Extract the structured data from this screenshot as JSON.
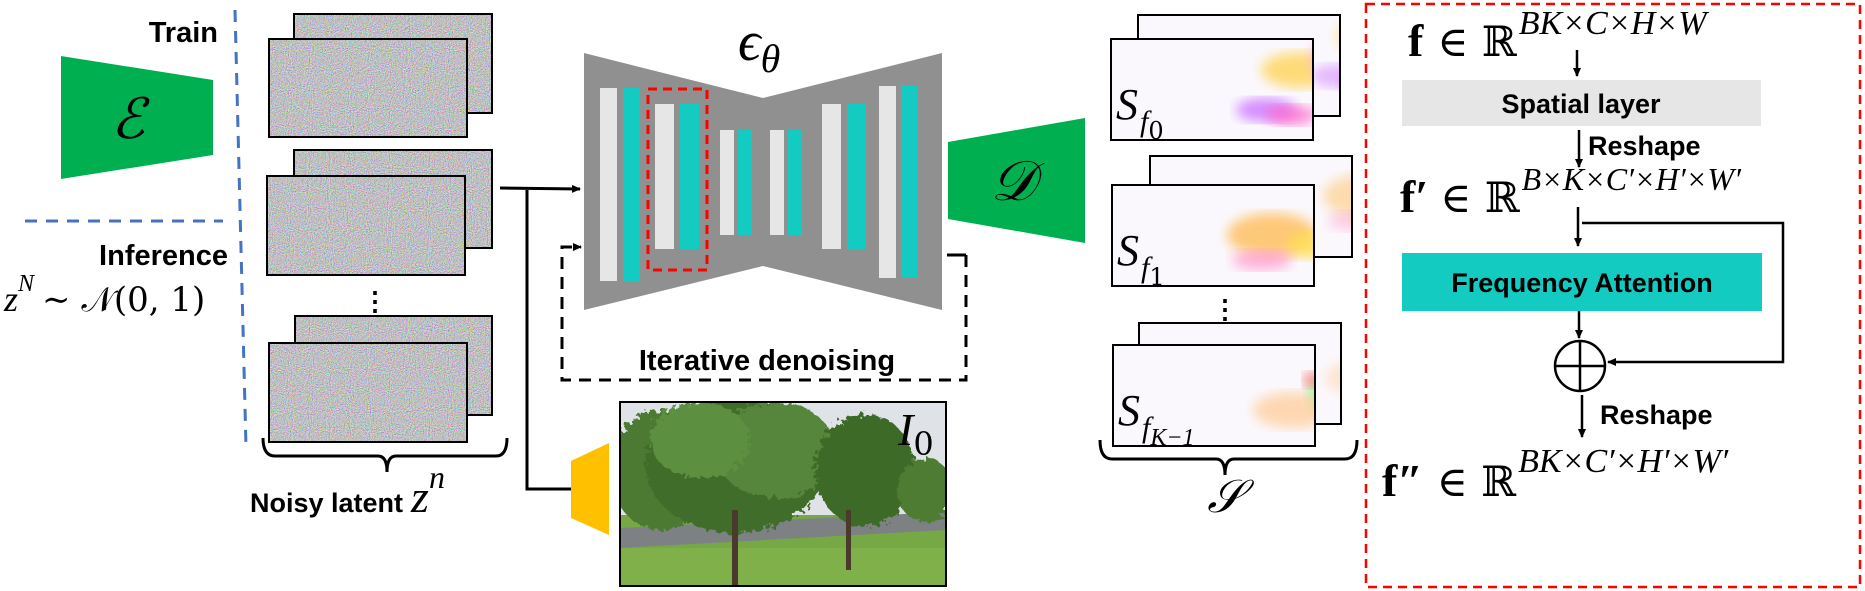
{
  "colors": {
    "encoder_green": "#00b050",
    "unet_gray": "#909090",
    "spatial_block": "#e6e6e6",
    "temporal_teal": "#13cbc1",
    "image_encoder_yellow": "#ffc000",
    "split_line_blue": "#4472c4",
    "highlight_red": "#ff0000"
  },
  "left": {
    "train_label": "Train",
    "inference_label": "Inference",
    "prior": {
      "base": "z",
      "sup": "N",
      "rest": "∼ 𝒩(0, 1)"
    },
    "encoder_symbol": "ℰ"
  },
  "latents": {
    "label": "Noisy latent",
    "symbol_base": "z",
    "symbol_sup": "n",
    "ellipsis": "⋮"
  },
  "unet": {
    "symbol_base": "ϵ",
    "symbol_sub": "θ",
    "loop_label": "Iterative denoising"
  },
  "condition": {
    "symbol_base": "I",
    "symbol_sub": "0"
  },
  "decoder": {
    "symbol": "𝒟"
  },
  "spectral": {
    "items": [
      {
        "base": "S",
        "sub": "f",
        "subsub": "0"
      },
      {
        "base": "S",
        "sub": "f",
        "subsub": "1"
      },
      {
        "base": "S",
        "sub": "f",
        "subsub": "K−1"
      }
    ],
    "ellipsis": "⋮",
    "set_symbol": "𝒮"
  },
  "detail": {
    "f_in": {
      "base": "f",
      "rel": "∈ ℝ",
      "sup": "BK×C×H×W"
    },
    "spatial_layer": "Spatial layer",
    "reshape_1": "Reshape",
    "f_mid": {
      "base": "f′",
      "rel": "∈ ℝ",
      "sup": "B×K×C′×H′×W′"
    },
    "frequency_attention": "Frequency Attention",
    "add_symbol": "⊕",
    "reshape_2": "Reshape",
    "f_out": {
      "base": "f″",
      "rel": "∈ ℝ",
      "sup": "BK×C′×H′×W′"
    }
  }
}
